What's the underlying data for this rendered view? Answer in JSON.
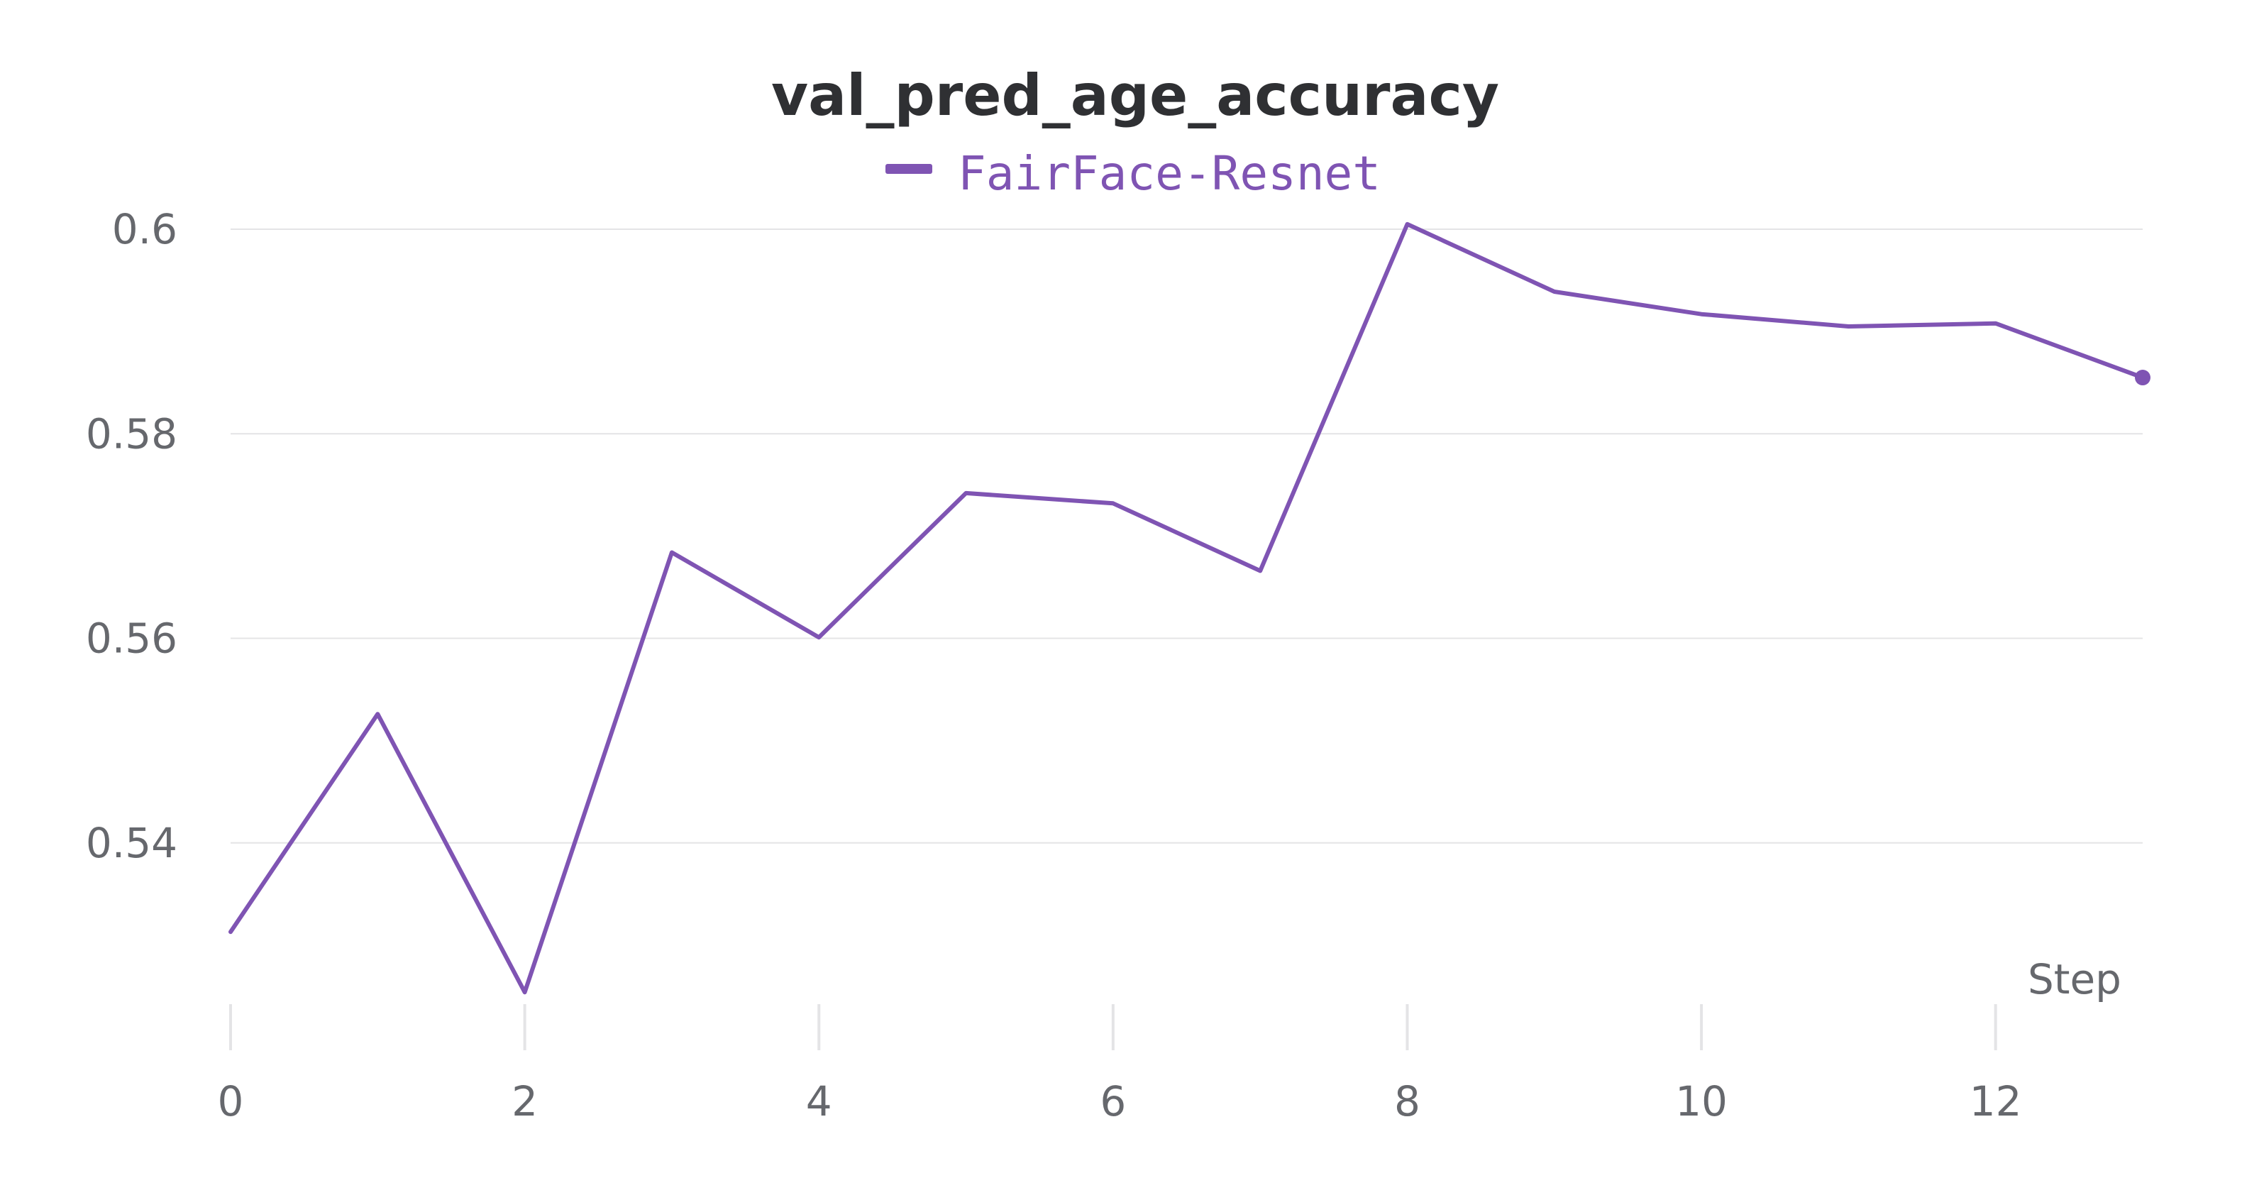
{
  "colors": {
    "series": "#7f54b3",
    "text": "#2f3033",
    "tick_text": "#66686d",
    "grid": "#e4e4e6"
  },
  "chart_data": {
    "type": "line",
    "title": "val_pred_age_accuracy",
    "xlabel": "Step",
    "ylabel": "",
    "legend": {
      "position": "top-center",
      "entries": [
        "FairFace-Resnet"
      ]
    },
    "grid": true,
    "xlim": [
      0,
      13
    ],
    "ylim": [
      0.5225,
      0.6016
    ],
    "x_ticks": [
      0,
      2,
      4,
      6,
      8,
      10,
      12
    ],
    "x_tick_labels": [
      "0",
      "2",
      "4",
      "6",
      "8",
      "10",
      "12"
    ],
    "y_ticks": [
      0.54,
      0.56,
      0.58,
      0.6
    ],
    "y_tick_labels": [
      "0.54",
      "0.56",
      "0.58",
      "0.6"
    ],
    "series": [
      {
        "name": "FairFace-Resnet",
        "color": "#7f54b3",
        "x": [
          0,
          1,
          2,
          3,
          4,
          5,
          6,
          7,
          8,
          9,
          10,
          11,
          12,
          13
        ],
        "values": [
          0.5313,
          0.5526,
          0.5254,
          0.5684,
          0.5601,
          0.5742,
          0.5732,
          0.5666,
          0.6005,
          0.5939,
          0.5917,
          0.5905,
          0.5908,
          0.5855
        ],
        "end_marker": true
      }
    ]
  }
}
